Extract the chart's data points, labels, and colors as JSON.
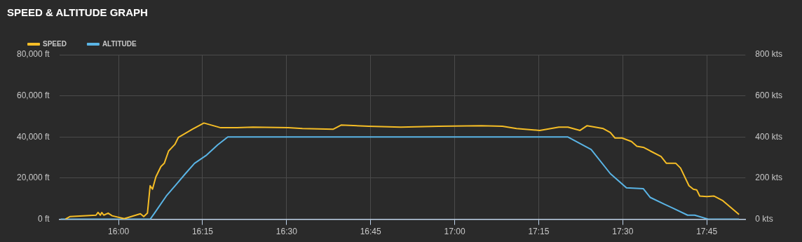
{
  "chart_data": {
    "type": "line",
    "title": "SPEED & ALTITUDE GRAPH",
    "legend": "top left",
    "grid": true,
    "marker": "none",
    "line_style": "solid",
    "xlim": [
      15.824,
      17.865
    ],
    "xticks": [
      {
        "value": 16,
        "label": "16:00"
      },
      {
        "value": 16.25,
        "label": "16:15"
      },
      {
        "value": 16.5,
        "label": "16:30"
      },
      {
        "value": 16.75,
        "label": "16:45"
      },
      {
        "value": 17,
        "label": "17:00"
      },
      {
        "value": 17.25,
        "label": "17:15"
      },
      {
        "value": 17.5,
        "label": "17:30"
      },
      {
        "value": 17.75,
        "label": "17:45"
      }
    ],
    "ylim": [
      0,
      80000
    ],
    "yticks": [
      {
        "value": 0,
        "label": "0 ft"
      },
      {
        "value": 20000,
        "label": "20,000 ft"
      },
      {
        "value": 40000,
        "label": "40,000 ft"
      },
      {
        "value": 60000,
        "label": "60,000 ft"
      },
      {
        "value": 80000,
        "label": "80,000 ft"
      }
    ],
    "y2lim": [
      0,
      800
    ],
    "y2ticks": [
      {
        "value": 0,
        "label": "0 kts"
      },
      {
        "value": 200,
        "label": "200 kts"
      },
      {
        "value": 400,
        "label": "400 kts"
      },
      {
        "value": 600,
        "label": "600 kts"
      },
      {
        "value": 800,
        "label": "800 kts"
      }
    ],
    "series": [
      {
        "name": "SPEED",
        "color": "#f5bd26",
        "axis": "y2",
        "x": [
          15.842,
          15.855,
          15.933,
          15.939,
          15.946,
          15.95,
          15.956,
          15.969,
          15.981,
          16.017,
          16.065,
          16.075,
          16.086,
          16.094,
          16.101,
          16.111,
          16.126,
          16.136,
          16.149,
          16.168,
          16.178,
          16.22,
          16.254,
          16.304,
          16.352,
          16.4,
          16.505,
          16.547,
          16.639,
          16.662,
          16.744,
          16.84,
          16.953,
          17.079,
          17.142,
          17.184,
          17.253,
          17.31,
          17.337,
          17.373,
          17.394,
          17.442,
          17.463,
          17.477,
          17.498,
          17.526,
          17.542,
          17.563,
          17.582,
          17.614,
          17.63,
          17.658,
          17.672,
          17.697,
          17.71,
          17.72,
          17.729,
          17.75,
          17.771,
          17.798,
          17.846
        ],
        "values": [
          1,
          13,
          20,
          33,
          20,
          33,
          20,
          30,
          17,
          3,
          27,
          13,
          30,
          163,
          146,
          206,
          256,
          272,
          332,
          365,
          398,
          438,
          468,
          445,
          445,
          448,
          445,
          441,
          438,
          458,
          452,
          448,
          452,
          455,
          452,
          441,
          432,
          448,
          448,
          432,
          455,
          441,
          422,
          395,
          395,
          378,
          355,
          349,
          332,
          305,
          272,
          272,
          249,
          163,
          146,
          143,
          113,
          110,
          113,
          90,
          23
        ]
      },
      {
        "name": "ALTITUDE",
        "color": "#5ab4e5",
        "axis": "y",
        "x": [
          15.828,
          16.094,
          16.107,
          16.142,
          16.17,
          16.199,
          16.226,
          16.262,
          16.295,
          16.325,
          17.337,
          17.406,
          17.463,
          17.511,
          17.561,
          17.582,
          17.624,
          17.651,
          17.693,
          17.714,
          17.756,
          17.846
        ],
        "values": [
          0,
          0,
          3000,
          11300,
          16600,
          22200,
          27200,
          31200,
          36200,
          40000,
          40000,
          33900,
          22200,
          15300,
          14900,
          10600,
          7300,
          5300,
          2000,
          2000,
          0,
          0
        ]
      }
    ]
  }
}
